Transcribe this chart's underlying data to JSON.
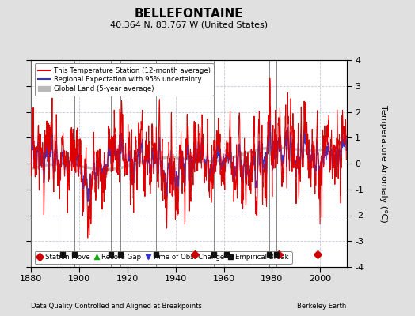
{
  "title": "BELLEFONTAINE",
  "subtitle": "40.364 N, 83.767 W (United States)",
  "ylabel": "Temperature Anomaly (°C)",
  "xlabel_left": "Data Quality Controlled and Aligned at Breakpoints",
  "xlabel_right": "Berkeley Earth",
  "year_start": 1880,
  "year_end": 2011,
  "ylim": [
    -4,
    4
  ],
  "yticks": [
    -4,
    -3,
    -2,
    -1,
    0,
    1,
    2,
    3,
    4
  ],
  "xticks": [
    1880,
    1900,
    1920,
    1940,
    1960,
    1980,
    2000
  ],
  "bg_color": "#e0e0e0",
  "plot_bg_color": "#ffffff",
  "grid_color": "#c8c8d8",
  "station_moves": [
    1948,
    1983,
    1999
  ],
  "empirical_breaks": [
    1893,
    1898,
    1913,
    1917,
    1932,
    1956,
    1961,
    1979,
    1982
  ],
  "time_obs_changes": [],
  "record_gaps": [],
  "marker_y": -3.5,
  "random_seed": 17
}
